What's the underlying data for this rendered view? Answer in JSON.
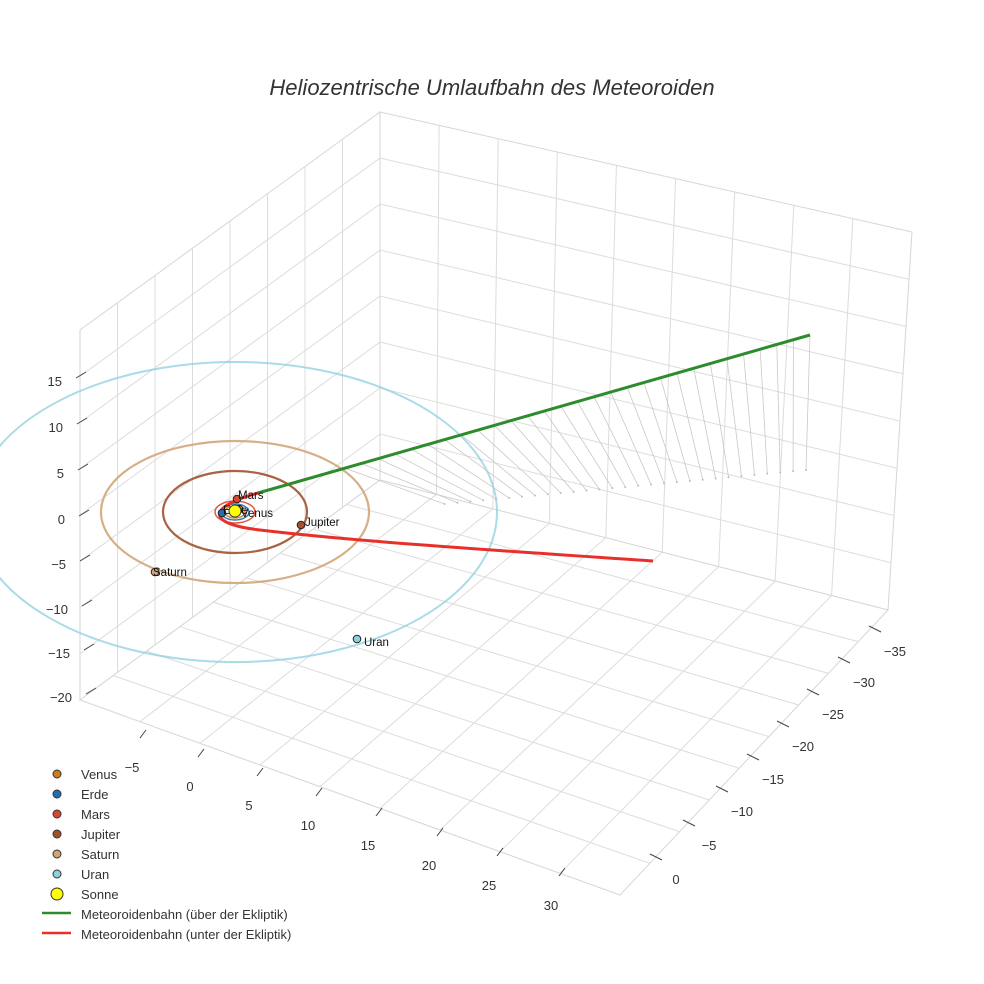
{
  "chart_data": {
    "type": "scatter3d",
    "title": "Heliozentrische Umlaufbahn des Meteoroiden",
    "axes": {
      "x": {
        "ticks": [
          "−5",
          "0",
          "5",
          "10",
          "15",
          "20",
          "25",
          "30"
        ]
      },
      "y": {
        "ticks": [
          "0",
          "−5",
          "−10",
          "−15",
          "−20",
          "−25",
          "−30",
          "−35"
        ]
      },
      "z": {
        "ticks": [
          "15",
          "10",
          "5",
          "0",
          "−5",
          "−10",
          "−15",
          "−20"
        ]
      }
    },
    "planets": [
      {
        "name": "Venus",
        "color": "#d07b1c",
        "label": "Venus",
        "orbit_radius_au": 0.72
      },
      {
        "name": "Erde",
        "color": "#1f6fb5",
        "label": "Erde",
        "orbit_radius_au": 1.0
      },
      {
        "name": "Mars",
        "color": "#d9472b",
        "label": "Mars",
        "orbit_radius_au": 1.52
      },
      {
        "name": "Jupiter",
        "color": "#a0522d",
        "label": "Jupiter",
        "orbit_radius_au": 5.2
      },
      {
        "name": "Saturn",
        "color": "#d2a679",
        "label": "Saturn",
        "orbit_radius_au": 9.5
      },
      {
        "name": "Uran",
        "color": "#8ecfe0",
        "label": "Uran",
        "orbit_radius_au": 19.2
      }
    ],
    "sun": {
      "name": "Sonne",
      "color": "#ffff00"
    },
    "meteoroid_orbit": [
      {
        "name": "Meteoroidenbahn (über der Ekliptik)",
        "color": "#2e8b2e"
      },
      {
        "name": "Meteoroidenbahn (unter der Ekliptik)",
        "color": "#e8302a"
      }
    ]
  },
  "legend": {
    "items": [
      {
        "label": "Venus",
        "kind": "dot",
        "color": "#d07b1c"
      },
      {
        "label": "Erde",
        "kind": "dot",
        "color": "#1f6fb5"
      },
      {
        "label": "Mars",
        "kind": "dot",
        "color": "#d9472b"
      },
      {
        "label": "Jupiter",
        "kind": "dot",
        "color": "#a0522d"
      },
      {
        "label": "Saturn",
        "kind": "dot",
        "color": "#d2a679"
      },
      {
        "label": "Uran",
        "kind": "dot",
        "color": "#8ecfe0"
      },
      {
        "label": "Sonne",
        "kind": "sun",
        "color": "#ffff00"
      },
      {
        "label": "Meteoroidenbahn (über der Ekliptik)",
        "kind": "line",
        "color": "#2e8b2e"
      },
      {
        "label": "Meteoroidenbahn (unter der Ekliptik)",
        "kind": "line",
        "color": "#e8302a"
      }
    ]
  }
}
